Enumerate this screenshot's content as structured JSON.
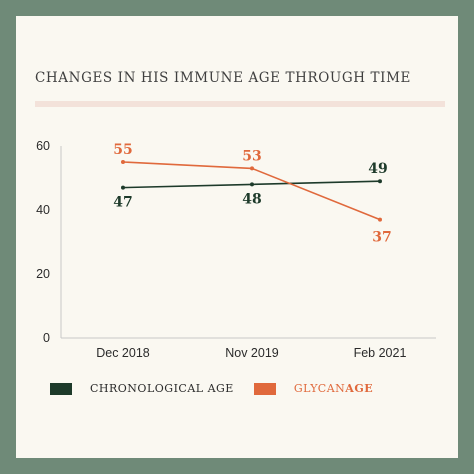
{
  "colors": {
    "chronological": "#1d3a2a",
    "glycan": "#e0693c",
    "title_rule": "#f3e2da",
    "frame": "#6f8a78",
    "panel": "#faf8f1"
  },
  "chart_data": {
    "type": "line",
    "title": "CHANGES IN HIS IMMUNE AGE THROUGH TIME",
    "categories": [
      "Dec 2018",
      "Nov 2019",
      "Feb 2021"
    ],
    "ylim": [
      0,
      60
    ],
    "yticks": [
      0,
      20,
      40,
      60
    ],
    "grid": false,
    "legend_position": "bottom-left",
    "series": [
      {
        "name": "CHRONOLOGICAL AGE",
        "values": [
          47,
          48,
          49
        ],
        "labels": [
          "47",
          "48",
          "49"
        ],
        "label_position": "below",
        "color_key": "chronological"
      },
      {
        "name": "GLYCANAGE",
        "name_prefix": "GLYCAN",
        "name_suffix": "AGE",
        "values": [
          55,
          53,
          37
        ],
        "labels": [
          "55",
          "53",
          "37"
        ],
        "label_position": "mixed",
        "color_key": "glycan"
      }
    ]
  }
}
